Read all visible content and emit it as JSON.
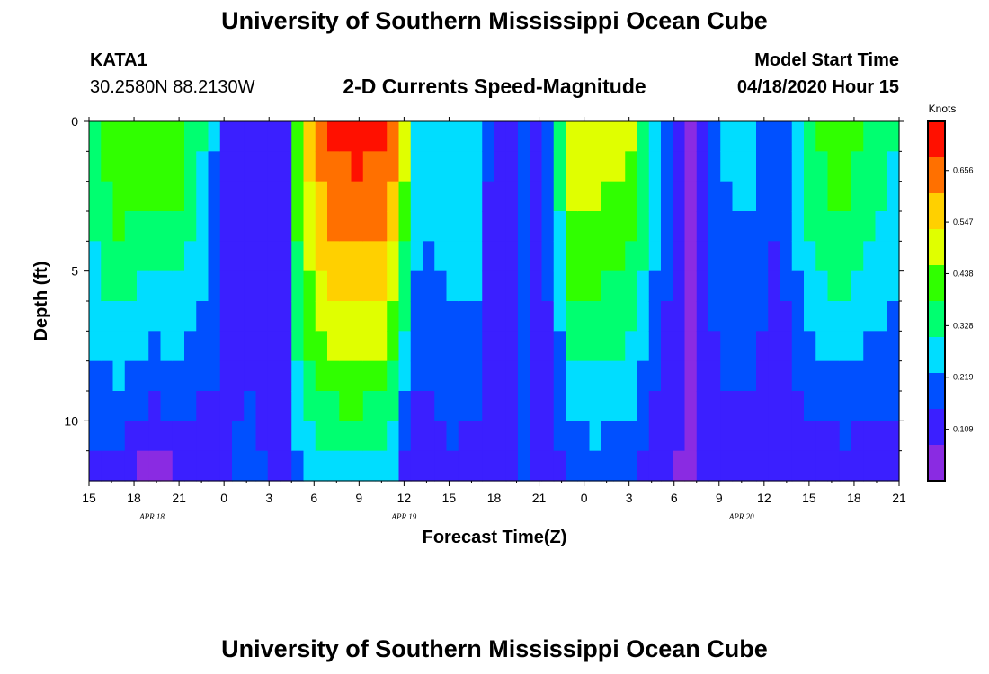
{
  "page": {
    "title_top": "University of Southern Mississippi Ocean Cube",
    "title_bottom": "University of Southern Mississippi Ocean Cube"
  },
  "header": {
    "station": "KATA1",
    "coords": "30.2580N 88.2130W",
    "subtitle": "2-D Currents Speed-Magnitude",
    "model_start_label": "Model Start Time",
    "model_start_value": "04/18/2020 Hour 15"
  },
  "chart_data": {
    "type": "heatmap",
    "title": "2-D Currents Speed-Magnitude",
    "xlabel": "Forecast Time(Z)",
    "ylabel": "Depth (ft)",
    "x_tick_labels": [
      "15",
      "18",
      "21",
      "0",
      "3",
      "6",
      "9",
      "12",
      "15",
      "18",
      "21",
      "0",
      "3",
      "6",
      "9",
      "12",
      "15",
      "18",
      "21"
    ],
    "date_labels": [
      {
        "text": "APR 18",
        "at_tick": 1.4
      },
      {
        "text": "APR 19",
        "at_tick": 7
      },
      {
        "text": "APR 20",
        "at_tick": 14.5
      }
    ],
    "y_tick_labels": [
      "0",
      "5",
      "10"
    ],
    "y_range_ft": [
      0,
      12
    ],
    "x_range_hours": [
      0,
      54
    ],
    "colorbar": {
      "units": "Knots",
      "range": [
        0,
        0.76
      ],
      "tick_values": [
        "0.109",
        "0.219",
        "0.328",
        "0.438",
        "0.547",
        "0.656"
      ],
      "colors": [
        "#8a2be2",
        "#3b1fff",
        "#0050ff",
        "#00ddff",
        "#00ff70",
        "#30ff00",
        "#e0ff00",
        "#ffd000",
        "#ff7000",
        "#ff1000"
      ]
    },
    "profiles": [
      {
        "hour": 0,
        "surface": 0.35,
        "bottom": 0.13
      },
      {
        "hour": 2,
        "surface": 0.46,
        "bottom": 0.1
      },
      {
        "hour": 4,
        "surface": 0.44,
        "bottom": 0.04
      },
      {
        "hour": 6,
        "surface": 0.44,
        "bottom": 0.06
      },
      {
        "hour": 8,
        "surface": 0.28,
        "bottom": 0.09
      },
      {
        "hour": 9,
        "surface": 0.15,
        "bottom": 0.14
      },
      {
        "hour": 11,
        "surface": 0.1,
        "bottom": 0.18
      },
      {
        "hour": 12,
        "surface": 0.09,
        "bottom": 0.14
      },
      {
        "hour": 13,
        "surface": 0.06,
        "bottom": 0.06
      },
      {
        "hour": 14,
        "surface": 0.48,
        "bottom": 0.22
      },
      {
        "hour": 16,
        "surface": 0.7,
        "bottom": 0.26
      },
      {
        "hour": 18,
        "surface": 0.72,
        "bottom": 0.27
      },
      {
        "hour": 20,
        "surface": 0.7,
        "bottom": 0.24
      },
      {
        "hour": 21,
        "surface": 0.5,
        "bottom": 0.1
      },
      {
        "hour": 22,
        "surface": 0.24,
        "bottom": 0.1
      },
      {
        "hour": 24,
        "surface": 0.3,
        "bottom": 0.13
      },
      {
        "hour": 26,
        "surface": 0.3,
        "bottom": 0.1
      },
      {
        "hour": 27,
        "surface": 0.07,
        "bottom": 0.07
      },
      {
        "hour": 28,
        "surface": 0.1,
        "bottom": 0.1
      },
      {
        "hour": 29,
        "surface": 0.18,
        "bottom": 0.16
      },
      {
        "hour": 30,
        "surface": 0.12,
        "bottom": 0.1
      },
      {
        "hour": 31,
        "surface": 0.22,
        "bottom": 0.12
      },
      {
        "hour": 32,
        "surface": 0.52,
        "bottom": 0.16
      },
      {
        "hour": 34,
        "surface": 0.5,
        "bottom": 0.18
      },
      {
        "hour": 36,
        "surface": 0.48,
        "bottom": 0.16
      },
      {
        "hour": 38,
        "surface": 0.26,
        "bottom": 0.07
      },
      {
        "hour": 40,
        "surface": 0.05,
        "bottom": 0.07
      },
      {
        "hour": 42,
        "surface": 0.24,
        "bottom": 0.1
      },
      {
        "hour": 44,
        "surface": 0.26,
        "bottom": 0.1
      },
      {
        "hour": 46,
        "surface": 0.16,
        "bottom": 0.08
      },
      {
        "hour": 48,
        "surface": 0.36,
        "bottom": 0.09
      },
      {
        "hour": 50,
        "surface": 0.44,
        "bottom": 0.1
      },
      {
        "hour": 52,
        "surface": 0.36,
        "bottom": 0.11
      },
      {
        "hour": 54,
        "surface": 0.3,
        "bottom": 0.1
      }
    ]
  }
}
